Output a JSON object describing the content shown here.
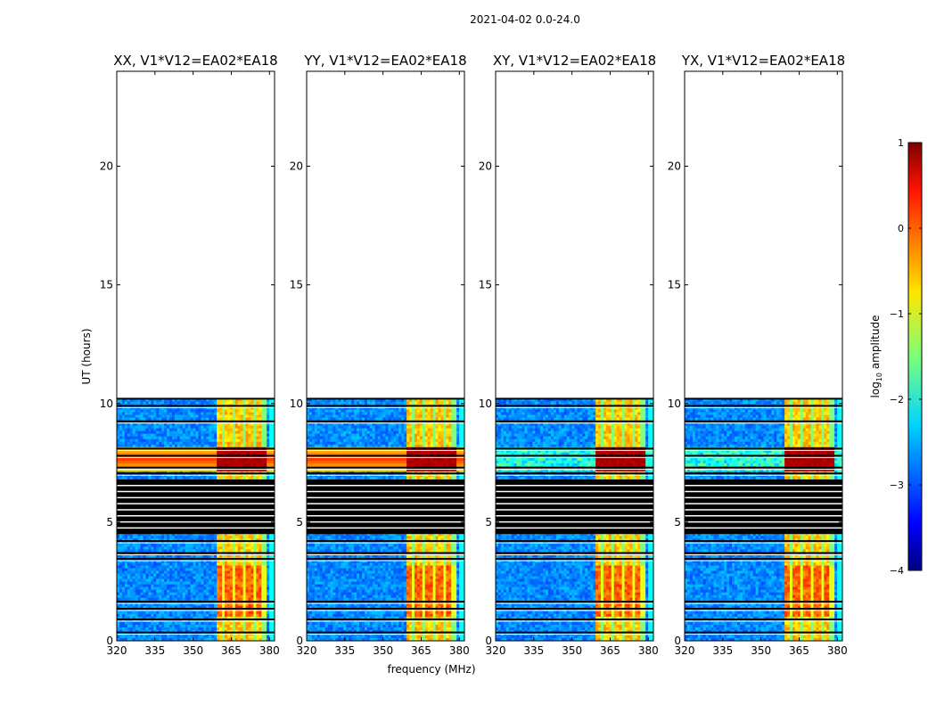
{
  "figure_title": "2021-04-02 0.0-24.0",
  "chart_data": {
    "type": "heatmap",
    "title": "2021-04-02 0.0-24.0",
    "xlabel": "frequency (MHz)",
    "ylabel": "UT (hours)",
    "xlim": [
      320,
      382
    ],
    "ylim": [
      0,
      24
    ],
    "xticks": [
      320,
      335,
      350,
      365,
      380
    ],
    "yticks": [
      0,
      5,
      10,
      15,
      20
    ],
    "panels": [
      {
        "title": "XX, V1*V12=EA02*EA18",
        "pol": "XX"
      },
      {
        "title": "YY, V1*V12=EA02*EA18",
        "pol": "YY"
      },
      {
        "title": "XY, V1*V12=EA02*EA18",
        "pol": "XY"
      },
      {
        "title": "YX, V1*V12=EA02*EA18",
        "pol": "YX"
      }
    ],
    "data_extent_hours": [
      0,
      10.2
    ],
    "flagged_interval_hours": [
      4.5,
      6.8
    ],
    "strong_band_mhz": [
      359,
      379
    ],
    "strong_band_channels_mhz": [
      362,
      366,
      370,
      374,
      378
    ],
    "strong_interval_hours": [
      2.0,
      3.1
    ],
    "colorbar": {
      "label": "log",
      "label_sub": "10",
      "label_rest": " amplitude",
      "range": [
        -4,
        1
      ],
      "ticks": [
        1,
        0,
        -1,
        -2,
        -3,
        -4
      ],
      "colormap": "jet"
    }
  }
}
